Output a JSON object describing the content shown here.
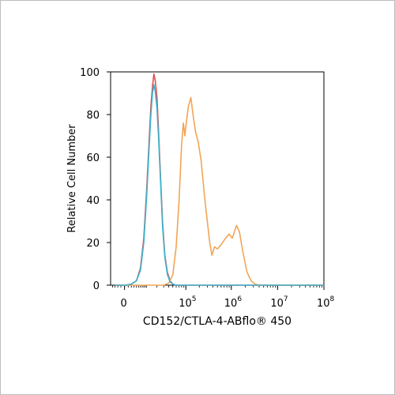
{
  "chart_data": {
    "type": "line",
    "title": "",
    "xlabel": "CD152/CTLA-4-ABflo® 450",
    "ylabel": "Relative Cell Number",
    "x_scale": "biexponential",
    "x_tick_labels": [
      {
        "base": "0",
        "exp": ""
      },
      {
        "base": "10",
        "exp": "5"
      },
      {
        "base": "10",
        "exp": "6"
      },
      {
        "base": "10",
        "exp": "7"
      },
      {
        "base": "10",
        "exp": "8"
      }
    ],
    "x_tick_values": [
      0,
      100000,
      1000000,
      10000000,
      100000000
    ],
    "y_tick_labels": [
      "0",
      "20",
      "40",
      "60",
      "80",
      "100"
    ],
    "ylim": [
      0,
      100
    ],
    "grid": false,
    "legend": false,
    "series": [
      {
        "color": "#e0504f",
        "points": [
          [
            -3000,
            0
          ],
          [
            500,
            0
          ],
          [
            2000,
            0.5
          ],
          [
            4000,
            2
          ],
          [
            6000,
            8
          ],
          [
            8000,
            22
          ],
          [
            10000,
            45
          ],
          [
            12000,
            68
          ],
          [
            13500,
            84
          ],
          [
            15000,
            93
          ],
          [
            16500,
            99
          ],
          [
            18000,
            96
          ],
          [
            20000,
            88
          ],
          [
            22000,
            73
          ],
          [
            25000,
            50
          ],
          [
            28000,
            30
          ],
          [
            32000,
            14
          ],
          [
            37000,
            6
          ],
          [
            43000,
            2
          ],
          [
            50000,
            0.5
          ],
          [
            60000,
            0
          ],
          [
            100000000,
            0
          ]
        ]
      },
      {
        "color": "#f0a555",
        "points": [
          [
            -3000,
            0
          ],
          [
            30000,
            0
          ],
          [
            40000,
            1
          ],
          [
            50000,
            5
          ],
          [
            60000,
            18
          ],
          [
            70000,
            40
          ],
          [
            80000,
            66
          ],
          [
            88000,
            76
          ],
          [
            95000,
            70
          ],
          [
            105000,
            78
          ],
          [
            115000,
            84
          ],
          [
            130000,
            88
          ],
          [
            145000,
            80
          ],
          [
            165000,
            72
          ],
          [
            190000,
            67
          ],
          [
            220000,
            58
          ],
          [
            260000,
            42
          ],
          [
            300000,
            30
          ],
          [
            340000,
            20
          ],
          [
            380000,
            14
          ],
          [
            430000,
            18
          ],
          [
            500000,
            17
          ],
          [
            600000,
            19
          ],
          [
            750000,
            22
          ],
          [
            900000,
            24
          ],
          [
            1050000,
            22
          ],
          [
            1300000,
            28
          ],
          [
            1500000,
            25
          ],
          [
            1800000,
            15
          ],
          [
            2200000,
            6
          ],
          [
            2700000,
            2
          ],
          [
            3300000,
            0.5
          ],
          [
            4000000,
            0
          ],
          [
            100000000,
            0
          ]
        ]
      },
      {
        "color": "#3ab3cf",
        "points": [
          [
            -3000,
            0
          ],
          [
            500,
            0
          ],
          [
            2000,
            0.5
          ],
          [
            4000,
            2
          ],
          [
            6000,
            7
          ],
          [
            8000,
            20
          ],
          [
            10000,
            42
          ],
          [
            12000,
            65
          ],
          [
            13500,
            80
          ],
          [
            15000,
            90
          ],
          [
            16500,
            94
          ],
          [
            18000,
            91
          ],
          [
            20000,
            83
          ],
          [
            22000,
            70
          ],
          [
            25000,
            48
          ],
          [
            28000,
            28
          ],
          [
            32000,
            13
          ],
          [
            37000,
            5
          ],
          [
            43000,
            1.5
          ],
          [
            50000,
            0.5
          ],
          [
            60000,
            0
          ],
          [
            100000000,
            0
          ]
        ]
      }
    ]
  }
}
